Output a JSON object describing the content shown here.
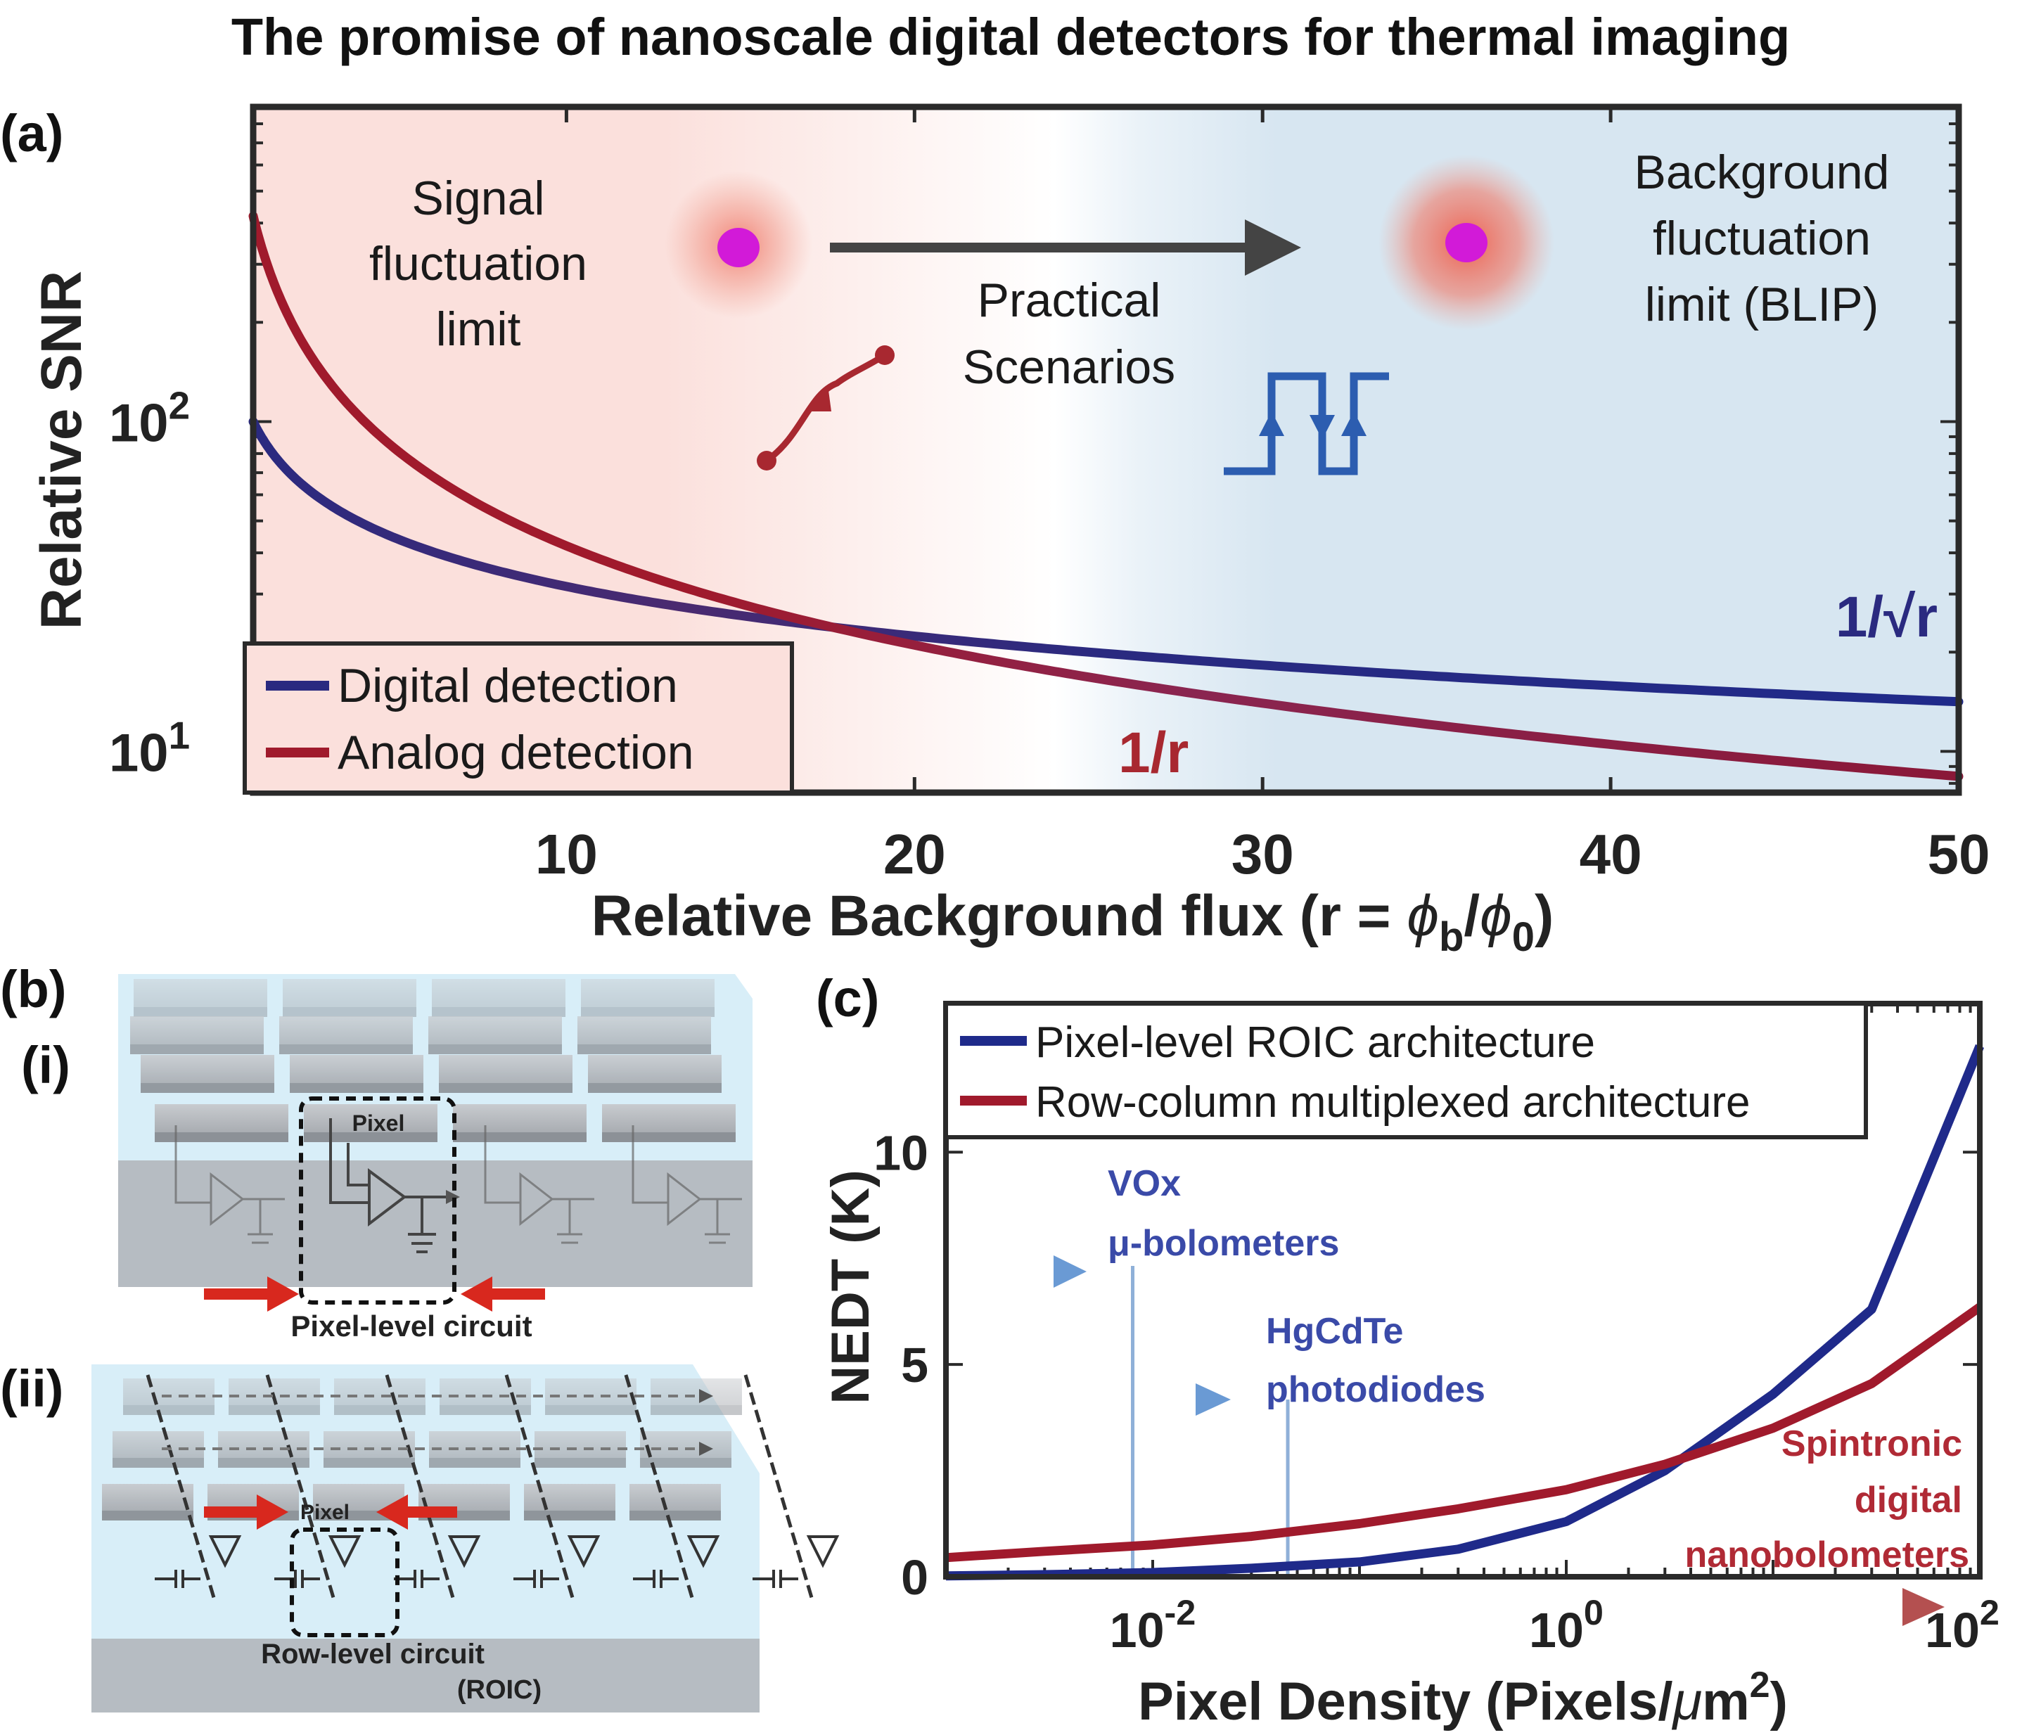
{
  "figure_title": "The promise of nanoscale digital detectors for thermal imaging",
  "panels": {
    "a": {
      "label": "(a)",
      "regions": {
        "left": [
          "Signal",
          "fluctuation",
          "limit"
        ],
        "middle": [
          "Practical",
          "Scenarios"
        ],
        "right": [
          "Background",
          "fluctuation",
          "limit (BLIP)"
        ]
      },
      "curve_labels": {
        "digital": "1/√r",
        "analog": "1/r"
      }
    },
    "b": {
      "label": "(b)",
      "sub_i": {
        "label": "(i)",
        "pixel": "Pixel",
        "caption": "Pixel-level circuit"
      },
      "sub_ii": {
        "label": "(ii)",
        "pixel": "Pixel",
        "caption_1": "Row-level circuit",
        "caption_2": "(ROIC)"
      }
    },
    "c": {
      "label": "(c)",
      "annotations": {
        "vox": [
          "VOx",
          "μ-bolometers"
        ],
        "hgcdte": [
          "HgCdTe",
          "photodiodes"
        ],
        "spintronic": [
          "Spintronic",
          "digital",
          "nanobolometers"
        ]
      }
    }
  },
  "colors": {
    "digital": "#1f2a8a",
    "analog": "#a01a2c",
    "signal_bg": "#fbe0dc",
    "blip_bg": "#d7e6f1",
    "annotation_blue": "#3a4aa8",
    "annotation_red": "#b02a35",
    "arrow_blue": "#5b8cc8",
    "arrow_red": "#b45050"
  },
  "chart_data": [
    {
      "id": "a",
      "type": "line",
      "xlabel": "Relative Background flux (r = ϕb/ϕ0)",
      "ylabel": "Relative SNR",
      "xscale": "linear",
      "yscale": "log",
      "xlim": [
        1,
        50
      ],
      "ylim": [
        7.5,
        900
      ],
      "xticks": [
        "10",
        "20",
        "30",
        "40",
        "50"
      ],
      "yticks": [
        "10^1",
        "10^2"
      ],
      "legend_position": "bottom-left",
      "series": [
        {
          "name": "Digital detection",
          "x": [
            1,
            2,
            5,
            10,
            15,
            20,
            30,
            40,
            50
          ],
          "y": [
            100,
            70.7,
            44.7,
            31.6,
            25.8,
            22.4,
            18.3,
            15.8,
            14.1
          ]
        },
        {
          "name": "Analog detection",
          "x": [
            1,
            2,
            5,
            10,
            15,
            20,
            30,
            40,
            50
          ],
          "y": [
            420,
            210,
            84,
            42,
            28,
            21,
            14,
            10.5,
            8.4
          ]
        }
      ]
    },
    {
      "id": "c",
      "type": "line",
      "xlabel": "Pixel Density (Pixels/μm2)",
      "ylabel": "NEDT (K)",
      "xscale": "log",
      "yscale": "linear",
      "xlim": [
        0.001,
        100
      ],
      "ylim": [
        0,
        13.5
      ],
      "xticks": [
        "10^-2",
        "10^0",
        "10^2"
      ],
      "yticks": [
        "0",
        "5",
        "10"
      ],
      "legend_position": "top",
      "series": [
        {
          "name": "Pixel-level ROIC architecture",
          "x": [
            0.001,
            0.003,
            0.01,
            0.03,
            0.1,
            0.3,
            1,
            3,
            10,
            30,
            100
          ],
          "y": [
            0.02,
            0.05,
            0.1,
            0.2,
            0.35,
            0.65,
            1.3,
            2.5,
            4.3,
            6.3,
            12.5
          ]
        },
        {
          "name": "Row-column multiplexed architecture",
          "x": [
            0.001,
            0.003,
            0.01,
            0.03,
            0.1,
            0.3,
            1,
            3,
            10,
            30,
            100
          ],
          "y": [
            0.45,
            0.6,
            0.75,
            0.95,
            1.25,
            1.6,
            2.05,
            2.65,
            3.5,
            4.55,
            6.35
          ]
        }
      ],
      "markers": [
        {
          "name": "VOx μ-bolometers",
          "x": 0.008
        },
        {
          "name": "HgCdTe photodiodes",
          "x": 0.045
        }
      ]
    }
  ]
}
